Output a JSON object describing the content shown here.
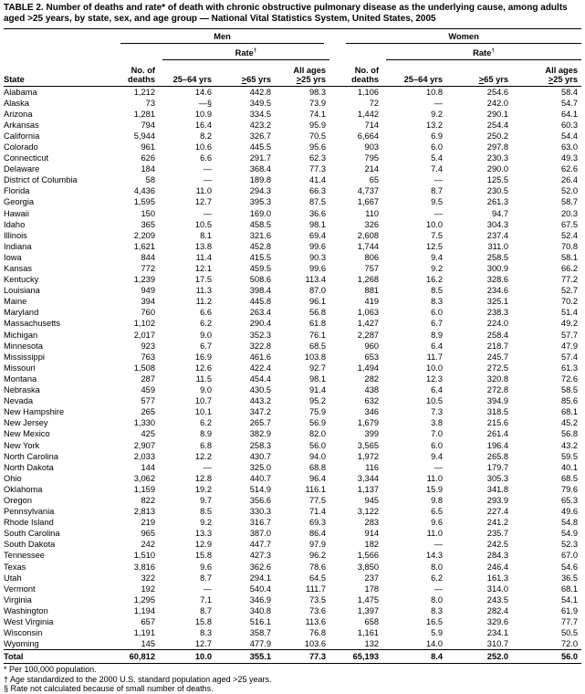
{
  "title": "TABLE 2. Number of deaths and rate* of death with chronic obstructive pulmonary disease as the underlying cause, among adults aged >25 years, by state, sex, and age group — National Vital Statistics System, United States, 2005",
  "groups": {
    "men": "Men",
    "women": "Women"
  },
  "rate_label": "Rate",
  "rate_mark": "†",
  "columns": {
    "state": "State",
    "deaths_l1": "No. of",
    "deaths_l2": "deaths",
    "age_25_64": "25–64 yrs",
    "age_65_sym": ">",
    "age_65_rest": "65 yrs",
    "all_l1": "All ages",
    "all_l2_sym": ">",
    "all_l2_rest": "25 yrs"
  },
  "rows": [
    [
      "Alabama",
      "1,212",
      "14.6",
      "442.8",
      "98.3",
      "1,106",
      "10.8",
      "254.6",
      "58.4"
    ],
    [
      "Alaska",
      "73",
      "—§",
      "349.5",
      "73.9",
      "72",
      "—",
      "242.0",
      "54.7"
    ],
    [
      "Arizona",
      "1,281",
      "10.9",
      "334.5",
      "74.1",
      "1,442",
      "9.2",
      "290.1",
      "64.1"
    ],
    [
      "Arkansas",
      "794",
      "16.4",
      "423.2",
      "95.9",
      "714",
      "13.2",
      "254.4",
      "60.3"
    ],
    [
      "California",
      "5,944",
      "8.2",
      "326.7",
      "70.5",
      "6,664",
      "6.9",
      "250.2",
      "54.4"
    ],
    [
      "Colorado",
      "961",
      "10.6",
      "445.5",
      "95.6",
      "903",
      "6.0",
      "297.8",
      "63.0"
    ],
    [
      "Connecticut",
      "626",
      "6.6",
      "291.7",
      "62.3",
      "795",
      "5.4",
      "230.3",
      "49.3"
    ],
    [
      "Delaware",
      "184",
      "—",
      "368.4",
      "77.3",
      "214",
      "7.4",
      "290.0",
      "62.6"
    ],
    [
      "District of Columbia",
      "58",
      "—",
      "189.8",
      "41.4",
      "65",
      "—",
      "125.5",
      "26.4"
    ],
    [
      "Florida",
      "4,436",
      "11.0",
      "294.3",
      "66.3",
      "4,737",
      "8.7",
      "230.5",
      "52.0"
    ],
    [
      "Georgia",
      "1,595",
      "12.7",
      "395.3",
      "87.5",
      "1,667",
      "9.5",
      "261.3",
      "58.7"
    ],
    [
      "Hawaii",
      "150",
      "—",
      "169.0",
      "36.6",
      "110",
      "—",
      "94.7",
      "20.3"
    ],
    [
      "Idaho",
      "365",
      "10.5",
      "458.5",
      "98.1",
      "326",
      "10.0",
      "304.3",
      "67.5"
    ],
    [
      "Illinois",
      "2,209",
      "8.1",
      "321.6",
      "69.4",
      "2,608",
      "7.5",
      "237.4",
      "52.4"
    ],
    [
      "Indiana",
      "1,621",
      "13.8",
      "452.8",
      "99.6",
      "1,744",
      "12.5",
      "311.0",
      "70.8"
    ],
    [
      "Iowa",
      "844",
      "11.4",
      "415.5",
      "90.3",
      "806",
      "9.4",
      "258.5",
      "58.1"
    ],
    [
      "Kansas",
      "772",
      "12.1",
      "459.5",
      "99.6",
      "757",
      "9.2",
      "300.9",
      "66.2"
    ],
    [
      "Kentucky",
      "1,239",
      "17.5",
      "508.6",
      "113.4",
      "1,268",
      "16.2",
      "328.6",
      "77.2"
    ],
    [
      "Louisiana",
      "949",
      "11.3",
      "398.4",
      "87.0",
      "881",
      "8.5",
      "234.6",
      "52.7"
    ],
    [
      "Maine",
      "394",
      "11.2",
      "445.8",
      "96.1",
      "419",
      "8.3",
      "325.1",
      "70.2"
    ],
    [
      "Maryland",
      "760",
      "6.6",
      "263.4",
      "56.8",
      "1,063",
      "6.0",
      "238.3",
      "51.4"
    ],
    [
      "Massachusetts",
      "1,102",
      "6.2",
      "290.4",
      "61.8",
      "1,427",
      "6.7",
      "224.0",
      "49.2"
    ],
    [
      "Michigan",
      "2,017",
      "9.0",
      "352.3",
      "76.1",
      "2,287",
      "8.9",
      "258.4",
      "57.7"
    ],
    [
      "Minnesota",
      "923",
      "6.7",
      "322.8",
      "68.5",
      "960",
      "6.4",
      "218.7",
      "47.9"
    ],
    [
      "Mississippi",
      "763",
      "16.9",
      "461.6",
      "103.8",
      "653",
      "11.7",
      "245.7",
      "57.4"
    ],
    [
      "Missouri",
      "1,508",
      "12.6",
      "422.4",
      "92.7",
      "1,494",
      "10.0",
      "272.5",
      "61.3"
    ],
    [
      "Montana",
      "287",
      "11.5",
      "454.4",
      "98.1",
      "282",
      "12.3",
      "320.8",
      "72.6"
    ],
    [
      "Nebraska",
      "459",
      "9.0",
      "430.5",
      "91.4",
      "438",
      "6.4",
      "272.8",
      "58.5"
    ],
    [
      "Nevada",
      "577",
      "10.7",
      "443.2",
      "95.2",
      "632",
      "10.5",
      "394.9",
      "85.6"
    ],
    [
      "New Hampshire",
      "265",
      "10.1",
      "347.2",
      "75.9",
      "346",
      "7.3",
      "318.5",
      "68.1"
    ],
    [
      "New Jersey",
      "1,330",
      "6.2",
      "265.7",
      "56.9",
      "1,679",
      "3.8",
      "215.6",
      "45.2"
    ],
    [
      "New Mexico",
      "425",
      "8.9",
      "382.9",
      "82.0",
      "399",
      "7.0",
      "261.4",
      "56.8"
    ],
    [
      "New York",
      "2,907",
      "6.8",
      "258.3",
      "56.0",
      "3,565",
      "6.0",
      "196.4",
      "43.2"
    ],
    [
      "North Carolina",
      "2,033",
      "12.2",
      "430.7",
      "94.0",
      "1,972",
      "9.4",
      "265.8",
      "59.5"
    ],
    [
      "North Dakota",
      "144",
      "—",
      "325.0",
      "68.8",
      "116",
      "—",
      "179.7",
      "40.1"
    ],
    [
      "Ohio",
      "3,062",
      "12.8",
      "440.7",
      "96.4",
      "3,344",
      "11.0",
      "305.3",
      "68.5"
    ],
    [
      "Oklahoma",
      "1,159",
      "19.2",
      "514.9",
      "116.1",
      "1,137",
      "15.9",
      "341.8",
      "79.6"
    ],
    [
      "Oregon",
      "822",
      "9.7",
      "356.6",
      "77.5",
      "945",
      "9.8",
      "293.9",
      "65.3"
    ],
    [
      "Pennsylvania",
      "2,813",
      "8.5",
      "330.3",
      "71.4",
      "3,122",
      "6.5",
      "227.4",
      "49.6"
    ],
    [
      "Rhode Island",
      "219",
      "9.2",
      "316.7",
      "69.3",
      "283",
      "9.6",
      "241.2",
      "54.8"
    ],
    [
      "South Carolina",
      "965",
      "13.3",
      "387.0",
      "86.4",
      "914",
      "11.0",
      "235.7",
      "54.9"
    ],
    [
      "South Dakota",
      "242",
      "12.9",
      "447.7",
      "97.9",
      "182",
      "—",
      "242.5",
      "52.3"
    ],
    [
      "Tennessee",
      "1,510",
      "15.8",
      "427.3",
      "96.2",
      "1,566",
      "14.3",
      "284.3",
      "67.0"
    ],
    [
      "Texas",
      "3,816",
      "9.6",
      "362.6",
      "78.6",
      "3,850",
      "8.0",
      "246.4",
      "54.6"
    ],
    [
      "Utah",
      "322",
      "8.7",
      "294.1",
      "64.5",
      "237",
      "6.2",
      "161.3",
      "36.5"
    ],
    [
      "Vermont",
      "192",
      "—",
      "540.4",
      "111.7",
      "178",
      "—",
      "314.0",
      "68.1"
    ],
    [
      "Virginia",
      "1,295",
      "7.1",
      "346.9",
      "73.5",
      "1,475",
      "8.0",
      "243.5",
      "54.1"
    ],
    [
      "Washington",
      "1,194",
      "8.7",
      "340.8",
      "73.6",
      "1,397",
      "8.3",
      "282.4",
      "61.9"
    ],
    [
      "West Virginia",
      "657",
      "15.8",
      "516.1",
      "113.6",
      "658",
      "16.5",
      "329.6",
      "77.7"
    ],
    [
      "Wisconsin",
      "1,191",
      "8.3",
      "358.7",
      "76.8",
      "1,161",
      "5.9",
      "234.1",
      "50.5"
    ],
    [
      "Wyoming",
      "145",
      "12.7",
      "477.9",
      "103.6",
      "132",
      "14.0",
      "310.7",
      "72.0"
    ]
  ],
  "total": [
    "Total",
    "60,812",
    "10.0",
    "355.1",
    "77.3",
    "65,193",
    "8.4",
    "252.0",
    "56.0"
  ],
  "footnotes": [
    "* Per 100,000 population.",
    "† Age standardized to the 2000 U.S. standard population aged >25 years.",
    "§ Rate not calculated because of small number of deaths."
  ]
}
